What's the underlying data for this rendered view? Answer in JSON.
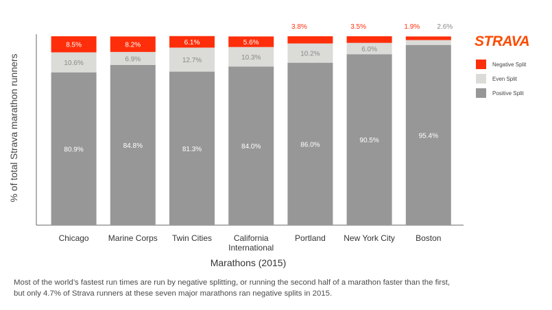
{
  "brand": {
    "logo_text": "STRAVA",
    "color": "#fc4c02"
  },
  "caption_line1": "Most of the world’s fastest run times are run by negative splitting, or running the second half of a marathon faster than the first,",
  "caption_line2": "but only 4.7% of Strava runners at these seven major marathons ran negative splits in 2015.",
  "chart_data": {
    "type": "bar",
    "stacked": true,
    "normalized_to_percent": true,
    "title": "",
    "xlabel": "Marathons (2015)",
    "ylabel": "% of total Strava marathon runners",
    "ylim": [
      0,
      100
    ],
    "y_tick_labels_shown": false,
    "grid": false,
    "legend_position": "right",
    "categories": [
      [
        "Chicago"
      ],
      [
        "Marine Corps"
      ],
      [
        "Twin Cities"
      ],
      [
        "California",
        "International"
      ],
      [
        "Portland"
      ],
      [
        "New York City"
      ],
      [
        "Boston"
      ]
    ],
    "series": [
      {
        "name": "Positive Split",
        "color": "#979797",
        "values": [
          80.9,
          84.8,
          81.3,
          84.0,
          86.0,
          90.5,
          95.4
        ],
        "labels": [
          "80.9%",
          "84.8%",
          "81.3%",
          "84.0%",
          "86.0%",
          "90.5%",
          "95.4%"
        ]
      },
      {
        "name": "Even Split",
        "color": "#dbdbd8",
        "values": [
          10.6,
          6.9,
          12.7,
          10.3,
          10.2,
          6.0,
          2.6
        ],
        "labels": [
          "10.6%",
          "6.9%",
          "12.7%",
          "10.3%",
          "10.2%",
          "6.0%",
          "2.6%"
        ]
      },
      {
        "name": "Negative Split",
        "color": "#fe2e0a",
        "values": [
          8.5,
          8.2,
          6.1,
          5.6,
          3.8,
          3.5,
          1.9
        ],
        "labels": [
          "8.5%",
          "8.2%",
          "6.1%",
          "5.6%",
          "3.8%",
          "3.5%",
          "1.9%"
        ]
      }
    ],
    "legend_order": [
      "Negative Split",
      "Even Split",
      "Positive Split"
    ]
  }
}
